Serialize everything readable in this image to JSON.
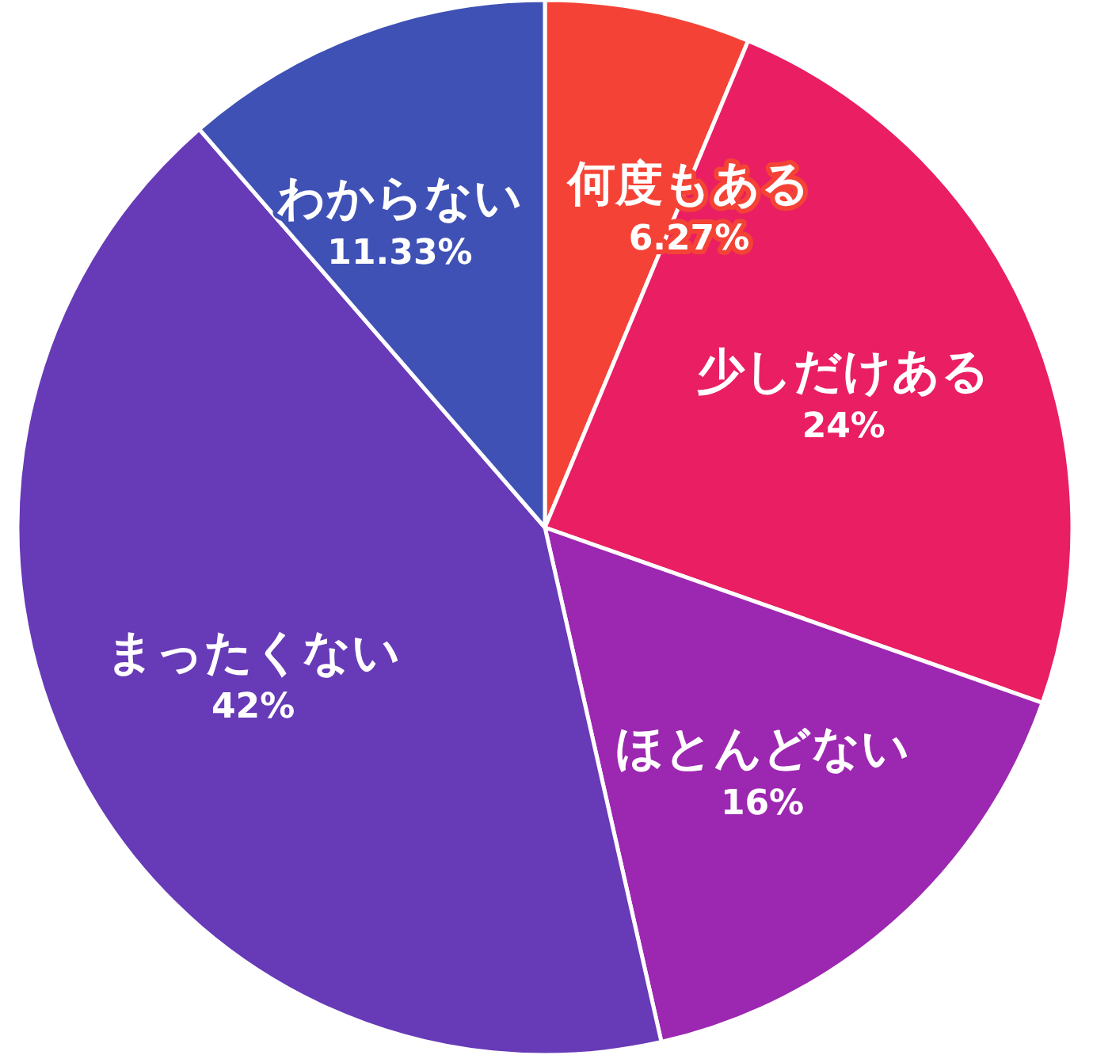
{
  "chart_data": {
    "type": "pie",
    "categories": [
      "何度もある",
      "少しだけある",
      "ほとんどない",
      "まったくない",
      "わからない"
    ],
    "values": [
      6.27,
      24,
      16,
      42,
      11.33
    ],
    "colors": [
      "#f44336",
      "#e91e63",
      "#9c27b0",
      "#673ab7",
      "#3f51b5"
    ],
    "value_labels": [
      "6.27%",
      "24%",
      "16%",
      "42%",
      "11.33%"
    ]
  }
}
